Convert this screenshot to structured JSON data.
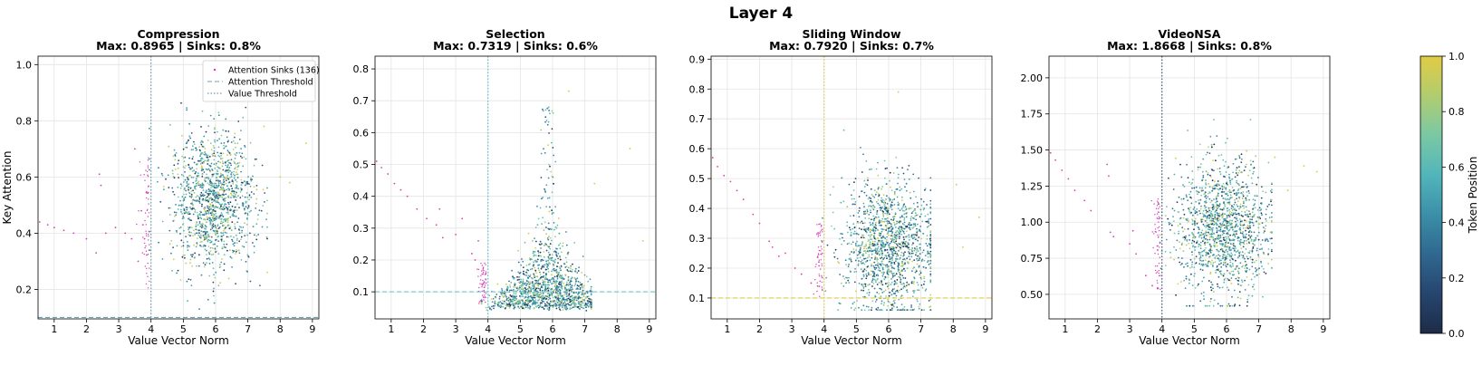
{
  "figure": {
    "suptitle": "Layer 4",
    "colorbar": {
      "label": "Token Position",
      "ticks": [
        "0.0",
        "0.2",
        "0.4",
        "0.6",
        "0.8",
        "1.0"
      ],
      "range": [
        0,
        1
      ]
    },
    "colormap": [
      "#1d2c48",
      "#26456e",
      "#2f6890",
      "#3b8fa8",
      "#52b5bb",
      "#7ac8a4",
      "#b0cd6f",
      "#e2cb45"
    ],
    "sink_color": "#d63fb4",
    "grid": true
  },
  "chart_data": [
    {
      "type": "scatter",
      "title": "Compression",
      "subtitle": "Max: 0.8965 | Sinks: 0.8%",
      "xlabel": "Value Vector Norm",
      "ylabel": "Key Attention",
      "xlim": [
        0.5,
        9.2
      ],
      "ylim": [
        0.095,
        1.03
      ],
      "xticks": [
        "1",
        "2",
        "3",
        "4",
        "5",
        "6",
        "7",
        "8",
        "9"
      ],
      "yticks": [
        "0.2",
        "0.4",
        "0.6",
        "0.8",
        "1.0"
      ],
      "value_threshold": 4.0,
      "attention_threshold": 0.1,
      "threshold_color": "#6aa0b8",
      "legend": {
        "position": "upper right",
        "entries": [
          "Attention Sinks (136)",
          "Attention Threshold",
          "Value Threshold"
        ]
      },
      "cloud": {
        "cx": 5.9,
        "cy": 0.52,
        "sx": 0.65,
        "sy": 0.12,
        "xmin": 3.95,
        "xmax": 7.6,
        "ymin": 0.12,
        "ymax": 0.87,
        "n": 1300
      },
      "sinks": [
        [
          0.55,
          0.44
        ],
        [
          0.8,
          0.43
        ],
        [
          1.0,
          0.42
        ],
        [
          1.3,
          0.41
        ],
        [
          1.6,
          0.4
        ],
        [
          2.0,
          0.38
        ],
        [
          2.3,
          0.33
        ],
        [
          2.4,
          0.61
        ],
        [
          2.45,
          0.57
        ],
        [
          2.6,
          0.4
        ],
        [
          2.9,
          0.42
        ],
        [
          3.2,
          0.4
        ],
        [
          3.4,
          0.38
        ],
        [
          3.5,
          0.7
        ],
        [
          3.6,
          0.3
        ],
        [
          3.7,
          0.48
        ],
        [
          3.75,
          0.43
        ],
        [
          3.8,
          0.38
        ]
      ],
      "outliers": [
        [
          8.8,
          0.72
        ],
        [
          8.3,
          0.58
        ],
        [
          7.5,
          0.78
        ],
        [
          8.0,
          0.6
        ]
      ]
    },
    {
      "type": "scatter",
      "title": "Selection",
      "subtitle": "Max: 0.7319 | Sinks: 0.6%",
      "xlabel": "Value Vector Norm",
      "ylabel": "",
      "xlim": [
        0.5,
        9.2
      ],
      "ylim": [
        0.015,
        0.84
      ],
      "xticks": [
        "1",
        "2",
        "3",
        "4",
        "5",
        "6",
        "7",
        "8",
        "9"
      ],
      "yticks": [
        "0.1",
        "0.2",
        "0.3",
        "0.4",
        "0.5",
        "0.6",
        "0.7",
        "0.8"
      ],
      "value_threshold": 4.0,
      "attention_threshold": 0.1,
      "threshold_color": "#5cc0d0",
      "cloud": {
        "cx": 5.8,
        "cy": 0.15,
        "sx": 0.75,
        "sy": 0.12,
        "xmin": 3.8,
        "xmax": 7.2,
        "ymin": 0.04,
        "ymax": 0.69,
        "n": 1400,
        "peak": 5.85
      },
      "sinks": [
        [
          0.55,
          0.51
        ],
        [
          0.7,
          0.49
        ],
        [
          0.9,
          0.47
        ],
        [
          1.1,
          0.44
        ],
        [
          1.3,
          0.42
        ],
        [
          1.5,
          0.4
        ],
        [
          1.8,
          0.36
        ],
        [
          2.1,
          0.33
        ],
        [
          2.4,
          0.31
        ],
        [
          2.5,
          0.36
        ],
        [
          2.6,
          0.27
        ],
        [
          3.0,
          0.28
        ],
        [
          3.2,
          0.33
        ],
        [
          3.5,
          0.22
        ],
        [
          3.6,
          0.2
        ],
        [
          3.7,
          0.26
        ]
      ],
      "outliers": [
        [
          8.4,
          0.55
        ],
        [
          8.8,
          0.26
        ],
        [
          6.5,
          0.73
        ],
        [
          7.3,
          0.44
        ]
      ]
    },
    {
      "type": "scatter",
      "title": "Sliding Window",
      "subtitle": "Max: 0.7920 | Sinks: 0.7%",
      "xlabel": "Value Vector Norm",
      "ylabel": "",
      "xlim": [
        0.5,
        9.2
      ],
      "ylim": [
        0.03,
        0.91
      ],
      "xticks": [
        "1",
        "2",
        "3",
        "4",
        "5",
        "6",
        "7",
        "8",
        "9"
      ],
      "yticks": [
        "0.1",
        "0.2",
        "0.3",
        "0.4",
        "0.5",
        "0.6",
        "0.7",
        "0.8",
        "0.9"
      ],
      "value_threshold": 4.0,
      "attention_threshold": 0.1,
      "threshold_color": "#e2cb45",
      "cloud": {
        "cx": 6.0,
        "cy": 0.27,
        "sx": 0.7,
        "sy": 0.11,
        "xmin": 3.95,
        "xmax": 7.3,
        "ymin": 0.06,
        "ymax": 0.72,
        "n": 1400
      },
      "sinks": [
        [
          0.55,
          0.57
        ],
        [
          0.7,
          0.54
        ],
        [
          0.9,
          0.51
        ],
        [
          1.1,
          0.49
        ],
        [
          1.3,
          0.46
        ],
        [
          1.5,
          0.43
        ],
        [
          1.8,
          0.38
        ],
        [
          2.0,
          0.35
        ],
        [
          2.3,
          0.29
        ],
        [
          2.4,
          0.27
        ],
        [
          2.6,
          0.24
        ],
        [
          2.8,
          0.25
        ],
        [
          3.1,
          0.2
        ],
        [
          3.3,
          0.18
        ],
        [
          3.6,
          0.15
        ],
        [
          3.8,
          0.14
        ]
      ],
      "outliers": [
        [
          8.1,
          0.48
        ],
        [
          8.8,
          0.37
        ],
        [
          8.3,
          0.27
        ],
        [
          6.3,
          0.79
        ]
      ]
    },
    {
      "type": "scatter",
      "title": "VideoNSA",
      "subtitle": "Max: 1.8668 | Sinks: 0.8%",
      "xlabel": "Value Vector Norm",
      "ylabel": "",
      "xlim": [
        0.5,
        9.2
      ],
      "ylim": [
        0.33,
        2.15
      ],
      "xticks": [
        "1",
        "2",
        "3",
        "4",
        "5",
        "6",
        "7",
        "8",
        "9"
      ],
      "yticks": [
        "0.50",
        "0.75",
        "1.00",
        "1.25",
        "1.50",
        "1.75",
        "2.00"
      ],
      "value_threshold": 4.0,
      "attention_threshold": 0.1,
      "threshold_color": "#3a5e82",
      "cloud": {
        "cx": 5.9,
        "cy": 0.95,
        "sx": 0.7,
        "sy": 0.23,
        "xmin": 3.9,
        "xmax": 7.4,
        "ymin": 0.42,
        "ymax": 1.85,
        "n": 1400
      },
      "sinks": [
        [
          0.55,
          1.48
        ],
        [
          0.7,
          1.43
        ],
        [
          0.9,
          1.36
        ],
        [
          1.1,
          1.3
        ],
        [
          1.3,
          1.22
        ],
        [
          1.6,
          1.15
        ],
        [
          1.8,
          1.08
        ],
        [
          2.3,
          1.4
        ],
        [
          2.35,
          1.32
        ],
        [
          2.4,
          0.93
        ],
        [
          2.5,
          0.9
        ],
        [
          3.0,
          0.85
        ],
        [
          3.1,
          0.94
        ],
        [
          3.2,
          0.78
        ],
        [
          3.5,
          0.63
        ],
        [
          3.7,
          0.56
        ]
      ],
      "outliers": [
        [
          8.4,
          1.39
        ],
        [
          8.8,
          1.35
        ],
        [
          7.5,
          1.45
        ],
        [
          7.9,
          1.22
        ]
      ]
    }
  ]
}
